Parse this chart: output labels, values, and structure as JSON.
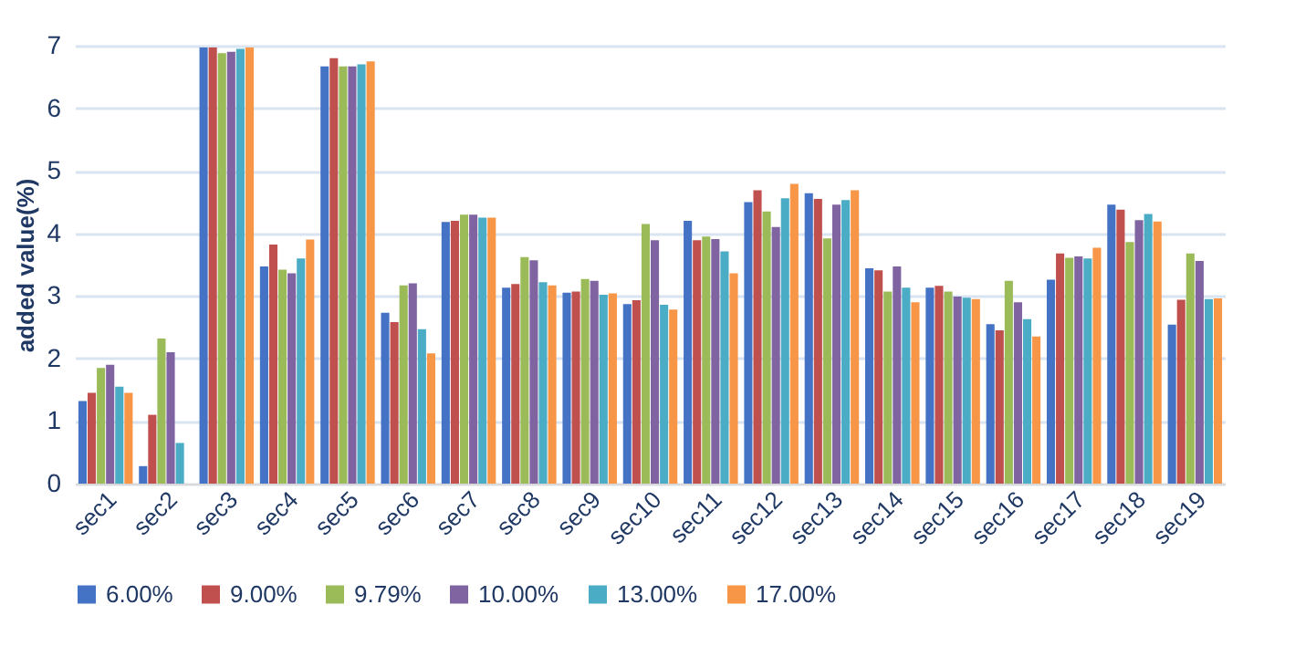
{
  "chart_data": {
    "type": "bar",
    "ylabel": "added value(%)",
    "categories": [
      "sec1",
      "sec2",
      "sec3",
      "sec4",
      "sec5",
      "sec6",
      "sec7",
      "sec8",
      "sec9",
      "sec10",
      "sec11",
      "sec12",
      "sec13",
      "sec14",
      "sec15",
      "sec16",
      "sec17",
      "sec18",
      "sec19"
    ],
    "series": [
      {
        "name": "6.00%",
        "color": "#4472c4",
        "values": [
          1.32,
          0.28,
          6.97,
          3.47,
          6.67,
          2.73,
          4.18,
          3.13,
          3.05,
          2.87,
          4.2,
          4.5,
          4.64,
          3.44,
          3.13,
          2.55,
          3.26,
          4.46,
          2.54
        ]
      },
      {
        "name": "9.00%",
        "color": "#c0504d",
        "values": [
          1.45,
          1.1,
          6.97,
          3.82,
          6.8,
          2.58,
          4.2,
          3.19,
          3.07,
          2.93,
          3.89,
          4.69,
          4.55,
          3.41,
          3.16,
          2.45,
          3.68,
          4.38,
          2.94
        ]
      },
      {
        "name": "9.79%",
        "color": "#9bbb59",
        "values": [
          1.85,
          2.32,
          6.88,
          3.42,
          6.67,
          3.17,
          4.3,
          3.62,
          3.27,
          4.15,
          3.95,
          4.35,
          3.92,
          3.07,
          3.07,
          3.24,
          3.61,
          3.86,
          3.68
        ]
      },
      {
        "name": "10.00%",
        "color": "#8064a2",
        "values": [
          1.9,
          2.1,
          6.9,
          3.36,
          6.67,
          3.2,
          4.3,
          3.57,
          3.24,
          3.89,
          3.91,
          4.1,
          4.46,
          3.47,
          2.99,
          2.9,
          3.63,
          4.21,
          3.56
        ]
      },
      {
        "name": "13.00%",
        "color": "#4bacc6",
        "values": [
          1.55,
          0.65,
          6.95,
          3.6,
          6.7,
          2.47,
          4.25,
          3.22,
          3.02,
          2.86,
          3.71,
          4.56,
          4.53,
          3.13,
          2.97,
          2.63,
          3.6,
          4.31,
          2.95
        ]
      },
      {
        "name": "17.00%",
        "color": "#f79646",
        "values": [
          1.45,
          null,
          6.97,
          3.9,
          6.75,
          2.08,
          4.25,
          3.17,
          3.04,
          2.78,
          3.36,
          4.79,
          4.69,
          2.9,
          2.95,
          2.35,
          3.77,
          4.19,
          2.96
        ]
      }
    ],
    "ylim": [
      0,
      7
    ],
    "yticks": [
      0,
      1,
      2,
      3,
      4,
      5,
      6,
      7
    ],
    "grid": "y",
    "legend": "bottom"
  }
}
